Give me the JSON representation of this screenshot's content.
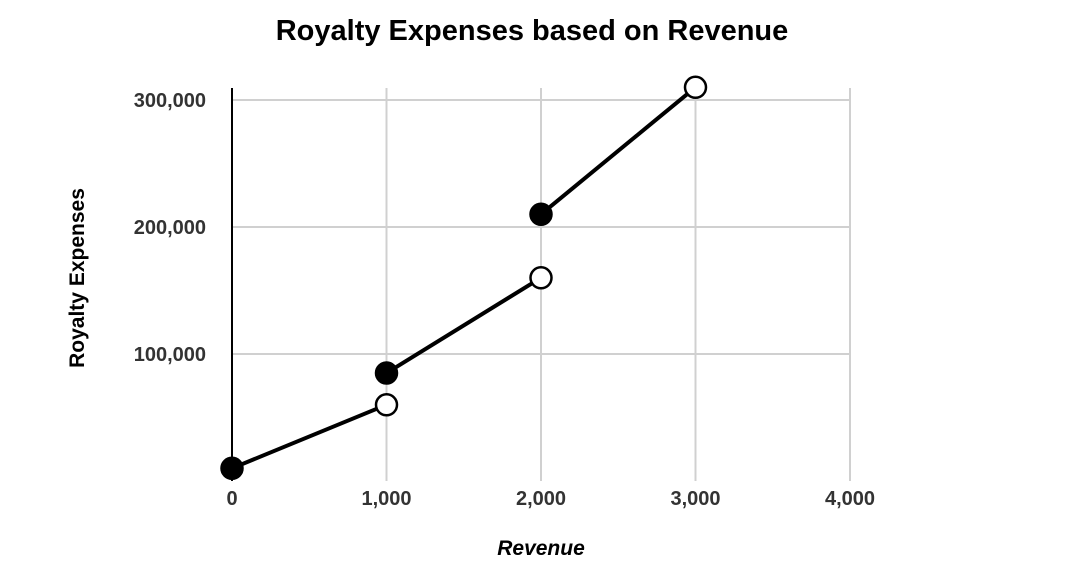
{
  "chart_data": {
    "type": "line",
    "title": "Royalty Expenses based on Revenue",
    "xlabel": "Revenue",
    "ylabel": "Royalty Expenses",
    "xlim": [
      0,
      4000
    ],
    "ylim": [
      0,
      300000
    ],
    "x_ticks": [
      0,
      1000,
      2000,
      3000,
      4000
    ],
    "x_tick_labels": [
      "0",
      "1,000",
      "2,000",
      "3,000",
      "4,000"
    ],
    "y_ticks": [
      100000,
      200000,
      300000
    ],
    "y_tick_labels": [
      "100,000",
      "200,000",
      "300,000"
    ],
    "grid": true,
    "legend": "none",
    "line_color": "#000000",
    "series": [
      {
        "segments": [
          {
            "start": {
              "x": 0,
              "y": 10000,
              "marker": "filled"
            },
            "end": {
              "x": 1000,
              "y": 60000,
              "marker": "open"
            }
          },
          {
            "start": {
              "x": 1000,
              "y": 85000,
              "marker": "filled"
            },
            "end": {
              "x": 2000,
              "y": 160000,
              "marker": "open"
            }
          },
          {
            "start": {
              "x": 2000,
              "y": 210000,
              "marker": "filled"
            },
            "end": {
              "x": 3000,
              "y": 310000,
              "marker": "open"
            }
          }
        ]
      }
    ]
  }
}
